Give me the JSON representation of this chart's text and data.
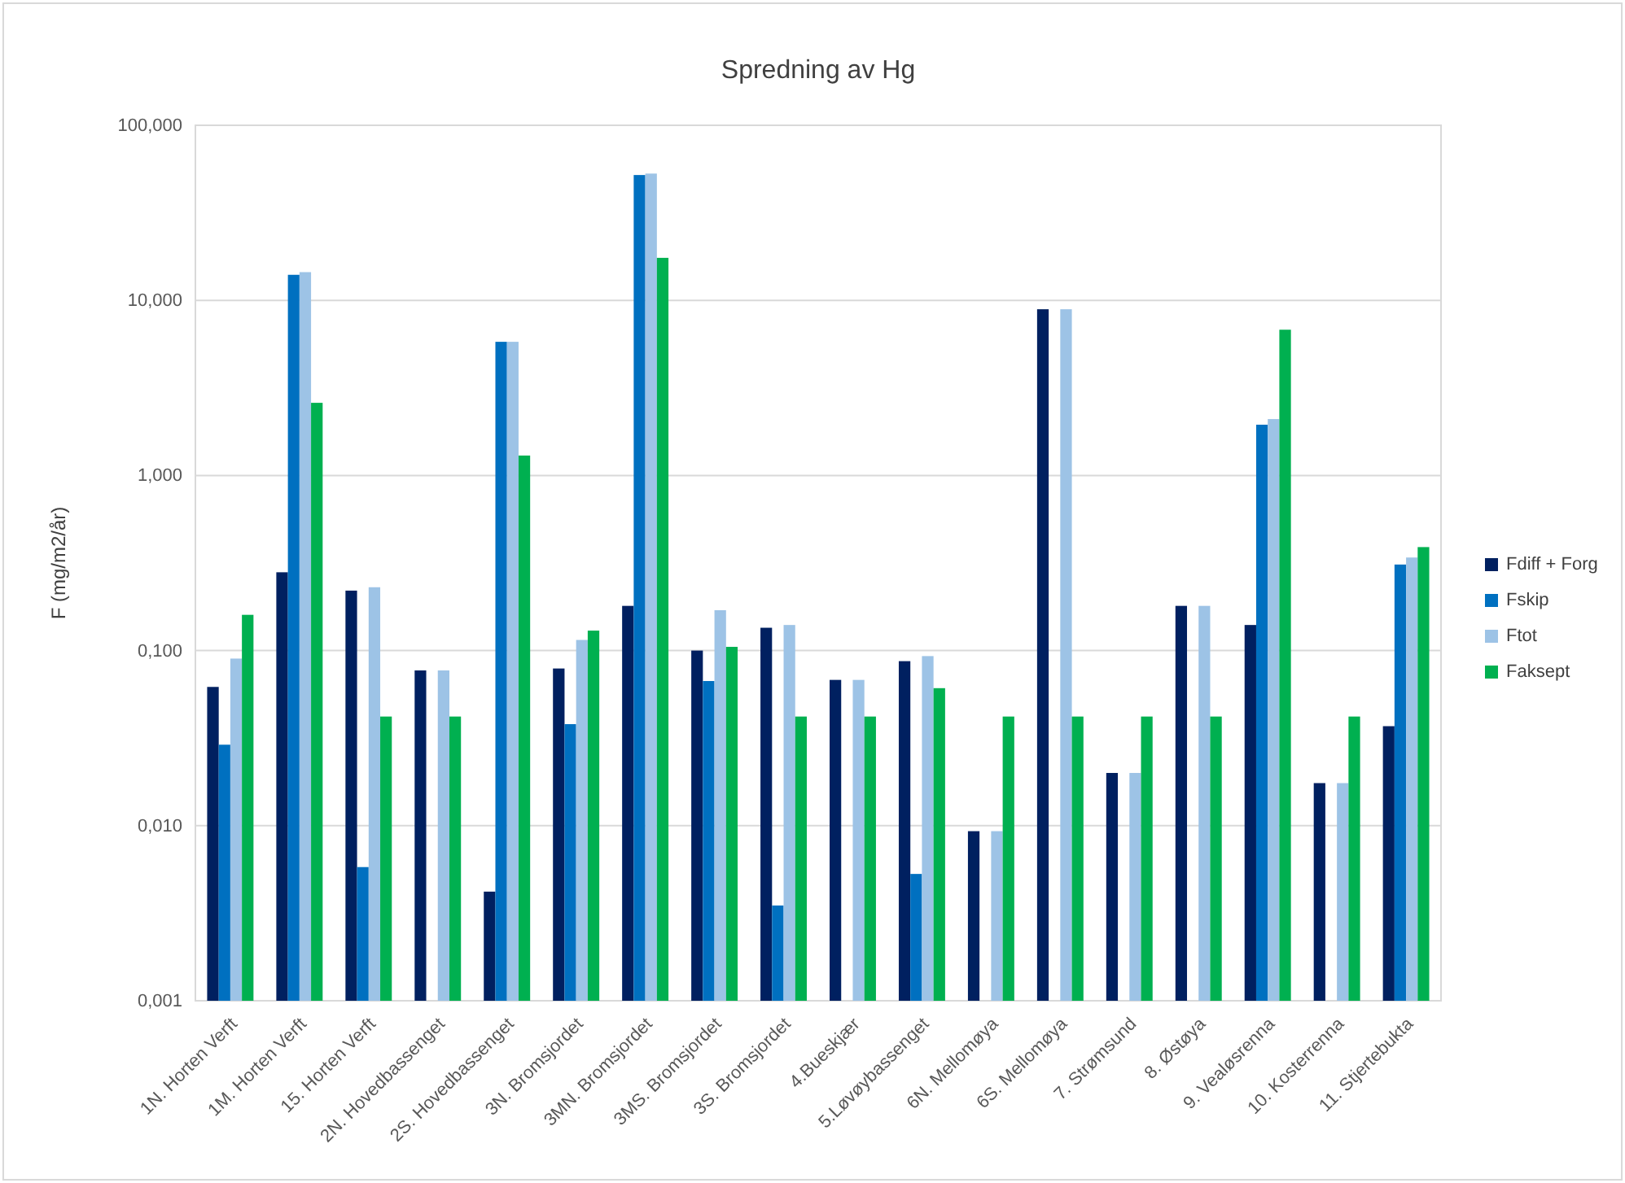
{
  "chart_data": {
    "type": "bar",
    "title": "Spredning av Hg",
    "ylabel": "F (mg/m2/år)",
    "categories": [
      "1N. Horten Verft",
      "1M. Horten Verft",
      "15. Horten Verft",
      "2N. Hovedbassenget",
      "2S. Hovedbassenget",
      "3N. Bromsjordet",
      "3MN. Bromsjordet",
      "3MS. Bromsjordet",
      "3S. Bromsjordet",
      "4.Bueskjær",
      "5.Løvøybassenget",
      "6N. Mellomøya",
      "6S. Mellomøya",
      "7. Strømsund",
      "8. Østøya",
      "9. Vealøsrenna",
      "10. Kosterrenna",
      "11. Stjertebukta"
    ],
    "series": [
      {
        "name": "Fdiff + Forg",
        "color": "#002060",
        "values": [
          0.062,
          0.28,
          0.22,
          0.077,
          0.0042,
          0.079,
          0.18,
          0.1,
          0.135,
          0.068,
          0.087,
          0.0093,
          8.9,
          0.02,
          0.18,
          0.14,
          0.0175,
          0.037
        ]
      },
      {
        "name": "Fskip",
        "color": "#0070c0",
        "values": [
          0.029,
          14,
          0.0058,
          null,
          5.8,
          0.038,
          52,
          0.067,
          0.0035,
          null,
          0.0053,
          null,
          null,
          null,
          null,
          1.95,
          null,
          0.31
        ]
      },
      {
        "name": "Ftot",
        "color": "#9dc3e6",
        "values": [
          0.09,
          14.5,
          0.23,
          0.077,
          5.8,
          0.115,
          53,
          0.17,
          0.14,
          0.068,
          0.093,
          0.0093,
          8.9,
          0.02,
          0.18,
          2.1,
          0.0175,
          0.34
        ]
      },
      {
        "name": "Faksept",
        "color": "#00b050",
        "values": [
          0.16,
          2.6,
          0.042,
          0.042,
          1.3,
          0.13,
          17.5,
          0.105,
          0.042,
          0.042,
          0.061,
          0.042,
          0.042,
          0.042,
          0.042,
          6.8,
          0.042,
          0.39
        ]
      }
    ],
    "log": true,
    "ylim": [
      0.001,
      100
    ],
    "yticks": [
      {
        "value": 0.001,
        "label": "0,001"
      },
      {
        "value": 0.01,
        "label": "0,010"
      },
      {
        "value": 0.1,
        "label": "0,100"
      },
      {
        "value": 1,
        "label": "1,000"
      },
      {
        "value": 10,
        "label": "10,000"
      },
      {
        "value": 100,
        "label": "100,000"
      }
    ],
    "grid": "y",
    "legend": "right"
  }
}
